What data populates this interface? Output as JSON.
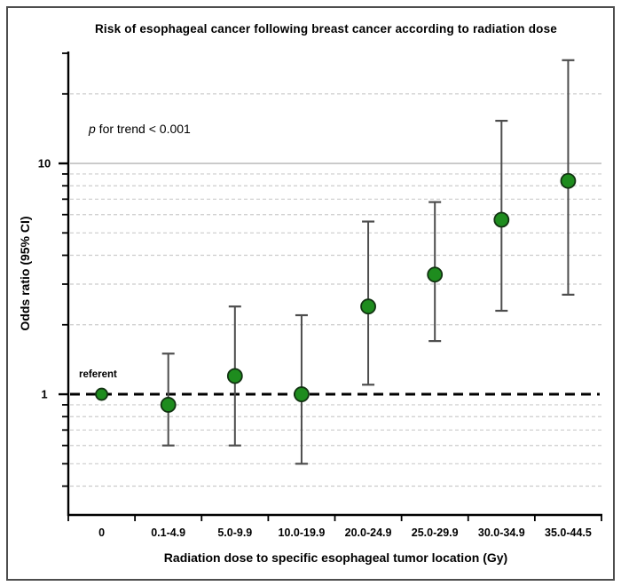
{
  "figure": {
    "title": "Risk of esophageal cancer following breast cancer according to radiation dose",
    "trend_annotation": {
      "italic": "p",
      "text": " for trend < 0.001"
    },
    "referent_label": "referent"
  },
  "chart_data": {
    "type": "scatter",
    "subtype": "odds-ratio-forest-plot",
    "title": "Risk of esophageal cancer following breast cancer according to radiation dose",
    "xlabel": "Radiation dose to specific esophageal tumor location (Gy)",
    "ylabel": "Odds ratio (95% CI)",
    "annotation": "p for trend < 0.001",
    "y_scale": "log",
    "ylim": [
      0.3,
      30
    ],
    "y_major_ticks": [
      1,
      10
    ],
    "y_minor_ticks": [
      0.4,
      0.5,
      0.6,
      0.7,
      0.8,
      0.9,
      2,
      3,
      4,
      5,
      6,
      7,
      8,
      9,
      20,
      30
    ],
    "y_gridlines_dashed": [
      0.4,
      0.5,
      0.6,
      0.7,
      0.8,
      0.9,
      2,
      3,
      4,
      5,
      6,
      7,
      8,
      9,
      20
    ],
    "y_gridlines_solid": [
      10
    ],
    "referent_line_y": 1,
    "grid": true,
    "legend_position": "none",
    "categories": [
      "0",
      "0.1-4.9",
      "5.0-9.9",
      "10.0-19.9",
      "20.0-24.9",
      "25.0-29.9",
      "30.0-34.9",
      "35.0-44.5"
    ],
    "series": [
      {
        "name": "Odds ratio (95% CI)",
        "points": [
          {
            "category": "0",
            "or": 1.0,
            "ci_low": null,
            "ci_high": null,
            "referent": true
          },
          {
            "category": "0.1-4.9",
            "or": 0.9,
            "ci_low": 0.6,
            "ci_high": 1.5
          },
          {
            "category": "5.0-9.9",
            "or": 1.2,
            "ci_low": 0.6,
            "ci_high": 2.4
          },
          {
            "category": "10.0-19.9",
            "or": 1.0,
            "ci_low": 0.5,
            "ci_high": 2.2
          },
          {
            "category": "20.0-24.9",
            "or": 2.4,
            "ci_low": 1.1,
            "ci_high": 5.6
          },
          {
            "category": "25.0-29.9",
            "or": 3.3,
            "ci_low": 1.7,
            "ci_high": 6.8
          },
          {
            "category": "30.0-34.9",
            "or": 5.7,
            "ci_low": 2.3,
            "ci_high": 15.3
          },
          {
            "category": "35.0-44.5",
            "or": 8.4,
            "ci_low": 2.7,
            "ci_high": 28.0
          }
        ]
      }
    ],
    "colors": {
      "marker_fill": "#1e8c1e",
      "marker_stroke": "#123312",
      "error_bar": "#4d4d4d",
      "gridline_dashed": "#cccccc",
      "gridline_solid": "#b3b3b3",
      "referent_line": "#000000",
      "axis": "#000000"
    }
  }
}
